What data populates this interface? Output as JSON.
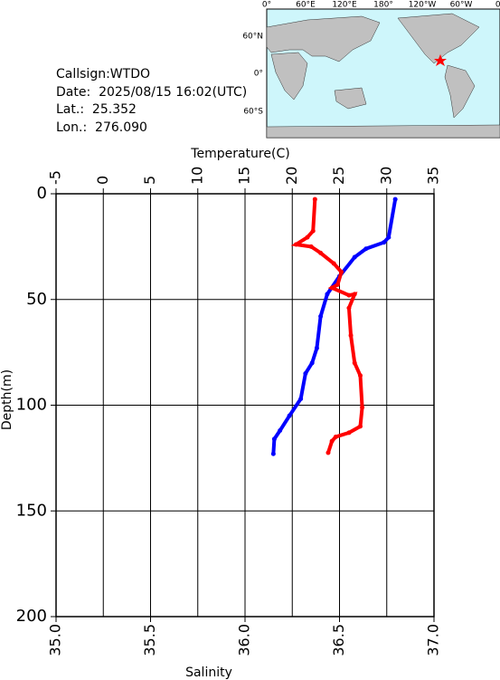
{
  "header": {
    "callsign": "Callsign:WTDO",
    "date": "Date:  2025/08/15 16:02(UTC)",
    "lat": "Lat.:  25.352",
    "lon": "Lon.:  276.090"
  },
  "map": {
    "xlabels": [
      "0°",
      "60°E",
      "120°E",
      "180°",
      "120°W",
      "60°W",
      "0°"
    ],
    "ylabels": [
      "60°N",
      "0°",
      "60°S"
    ]
  },
  "chart_data": {
    "type": "line",
    "x_label": "Salinity",
    "x2_label": "Temperature(C)",
    "y_label": "Depth(m)",
    "xlim": [
      35,
      37
    ],
    "xticks": [
      {
        "value": 35,
        "label": "35.0"
      },
      36.5,
      {
        "value": 36,
        "label": "36.0"
      },
      35.5,
      {
        "value": 37,
        "label": "37.0"
      }
    ],
    "x2lim": [
      -5,
      35
    ],
    "x2ticks": [
      -5,
      0,
      5,
      10,
      15,
      20,
      25,
      30,
      35
    ],
    "ylim": [
      0,
      200
    ],
    "yticks": [
      0,
      50,
      100,
      150,
      200
    ],
    "y_inverted": true,
    "grid": true,
    "series": [
      {
        "name": "Temperature",
        "axis": "x2",
        "color": "#0000ff",
        "depth": [
          2.6,
          20.6,
          23,
          26,
          30,
          39,
          47.5,
          58,
          73,
          80,
          85,
          97,
          105,
          112,
          116,
          123
        ],
        "values": [
          30.9,
          30.2,
          29.7,
          27.8,
          26.6,
          25.0,
          23.7,
          23.0,
          22.6,
          22.1,
          21.4,
          20.9,
          19.7,
          18.7,
          18.1,
          18.0
        ]
      },
      {
        "name": "Salinity",
        "axis": "x",
        "color": "#ff0000",
        "depth": [
          2.6,
          17.6,
          20.6,
          24,
          25,
          28,
          33,
          37,
          43,
          44.5,
          48,
          47.5,
          54,
          67,
          80,
          86,
          101,
          110,
          113,
          115,
          117,
          122.5
        ],
        "values": [
          36.37,
          36.36,
          36.33,
          36.27,
          36.35,
          36.4,
          36.47,
          36.51,
          36.49,
          36.46,
          36.55,
          36.58,
          36.55,
          36.56,
          36.58,
          36.61,
          36.62,
          36.61,
          36.55,
          36.48,
          36.46,
          36.44
        ]
      }
    ]
  }
}
